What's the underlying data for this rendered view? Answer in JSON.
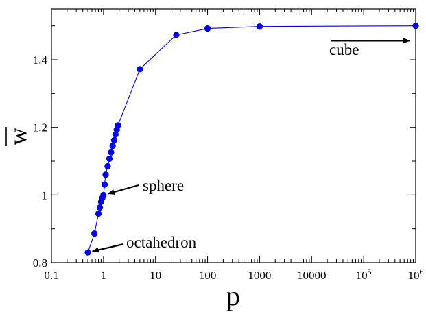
{
  "chart_data": {
    "type": "scatter",
    "title": "",
    "xlabel": "p",
    "ylabel": "w",
    "ylabel_overline": true,
    "x_scale": "log",
    "xlim": [
      0.1,
      1000000
    ],
    "ylim": [
      0.8,
      1.55
    ],
    "x_ticks": [
      {
        "value": 0.1,
        "label": "0.1"
      },
      {
        "value": 1,
        "label": "1"
      },
      {
        "value": 10,
        "label": "10"
      },
      {
        "value": 100,
        "label": "100"
      },
      {
        "value": 1000,
        "label": "1000"
      },
      {
        "value": 10000,
        "label": "10000"
      },
      {
        "value": 100000,
        "label": "10",
        "sup": "5"
      },
      {
        "value": 1000000,
        "label": "10",
        "sup": "6"
      }
    ],
    "y_ticks": [
      {
        "value": 0.8,
        "label": "0.8"
      },
      {
        "value": 1.0,
        "label": "1"
      },
      {
        "value": 1.2,
        "label": "1.2"
      },
      {
        "value": 1.4,
        "label": "1.4"
      }
    ],
    "grid": false,
    "series_color": "#0000ee",
    "series": [
      {
        "name": "",
        "x": [
          0.5,
          0.67,
          0.8,
          0.85,
          0.9,
          0.95,
          1.0,
          1.05,
          1.1,
          1.2,
          1.3,
          1.4,
          1.5,
          1.6,
          1.7,
          1.8,
          1.9,
          5,
          25,
          100,
          1000,
          1000000
        ],
        "y": [
          0.83,
          0.886,
          0.945,
          0.963,
          0.98,
          0.991,
          1.0,
          1.031,
          1.06,
          1.085,
          1.107,
          1.126,
          1.145,
          1.162,
          1.179,
          1.193,
          1.206,
          1.372,
          1.473,
          1.492,
          1.498,
          1.5
        ]
      }
    ],
    "annotations": [
      {
        "text": "cube",
        "point": [
          1000000,
          1.456
        ]
      },
      {
        "text": "sphere",
        "point": [
          1.0,
          1.0
        ]
      },
      {
        "text": "octahedron",
        "point": [
          0.5,
          0.83
        ]
      }
    ]
  }
}
